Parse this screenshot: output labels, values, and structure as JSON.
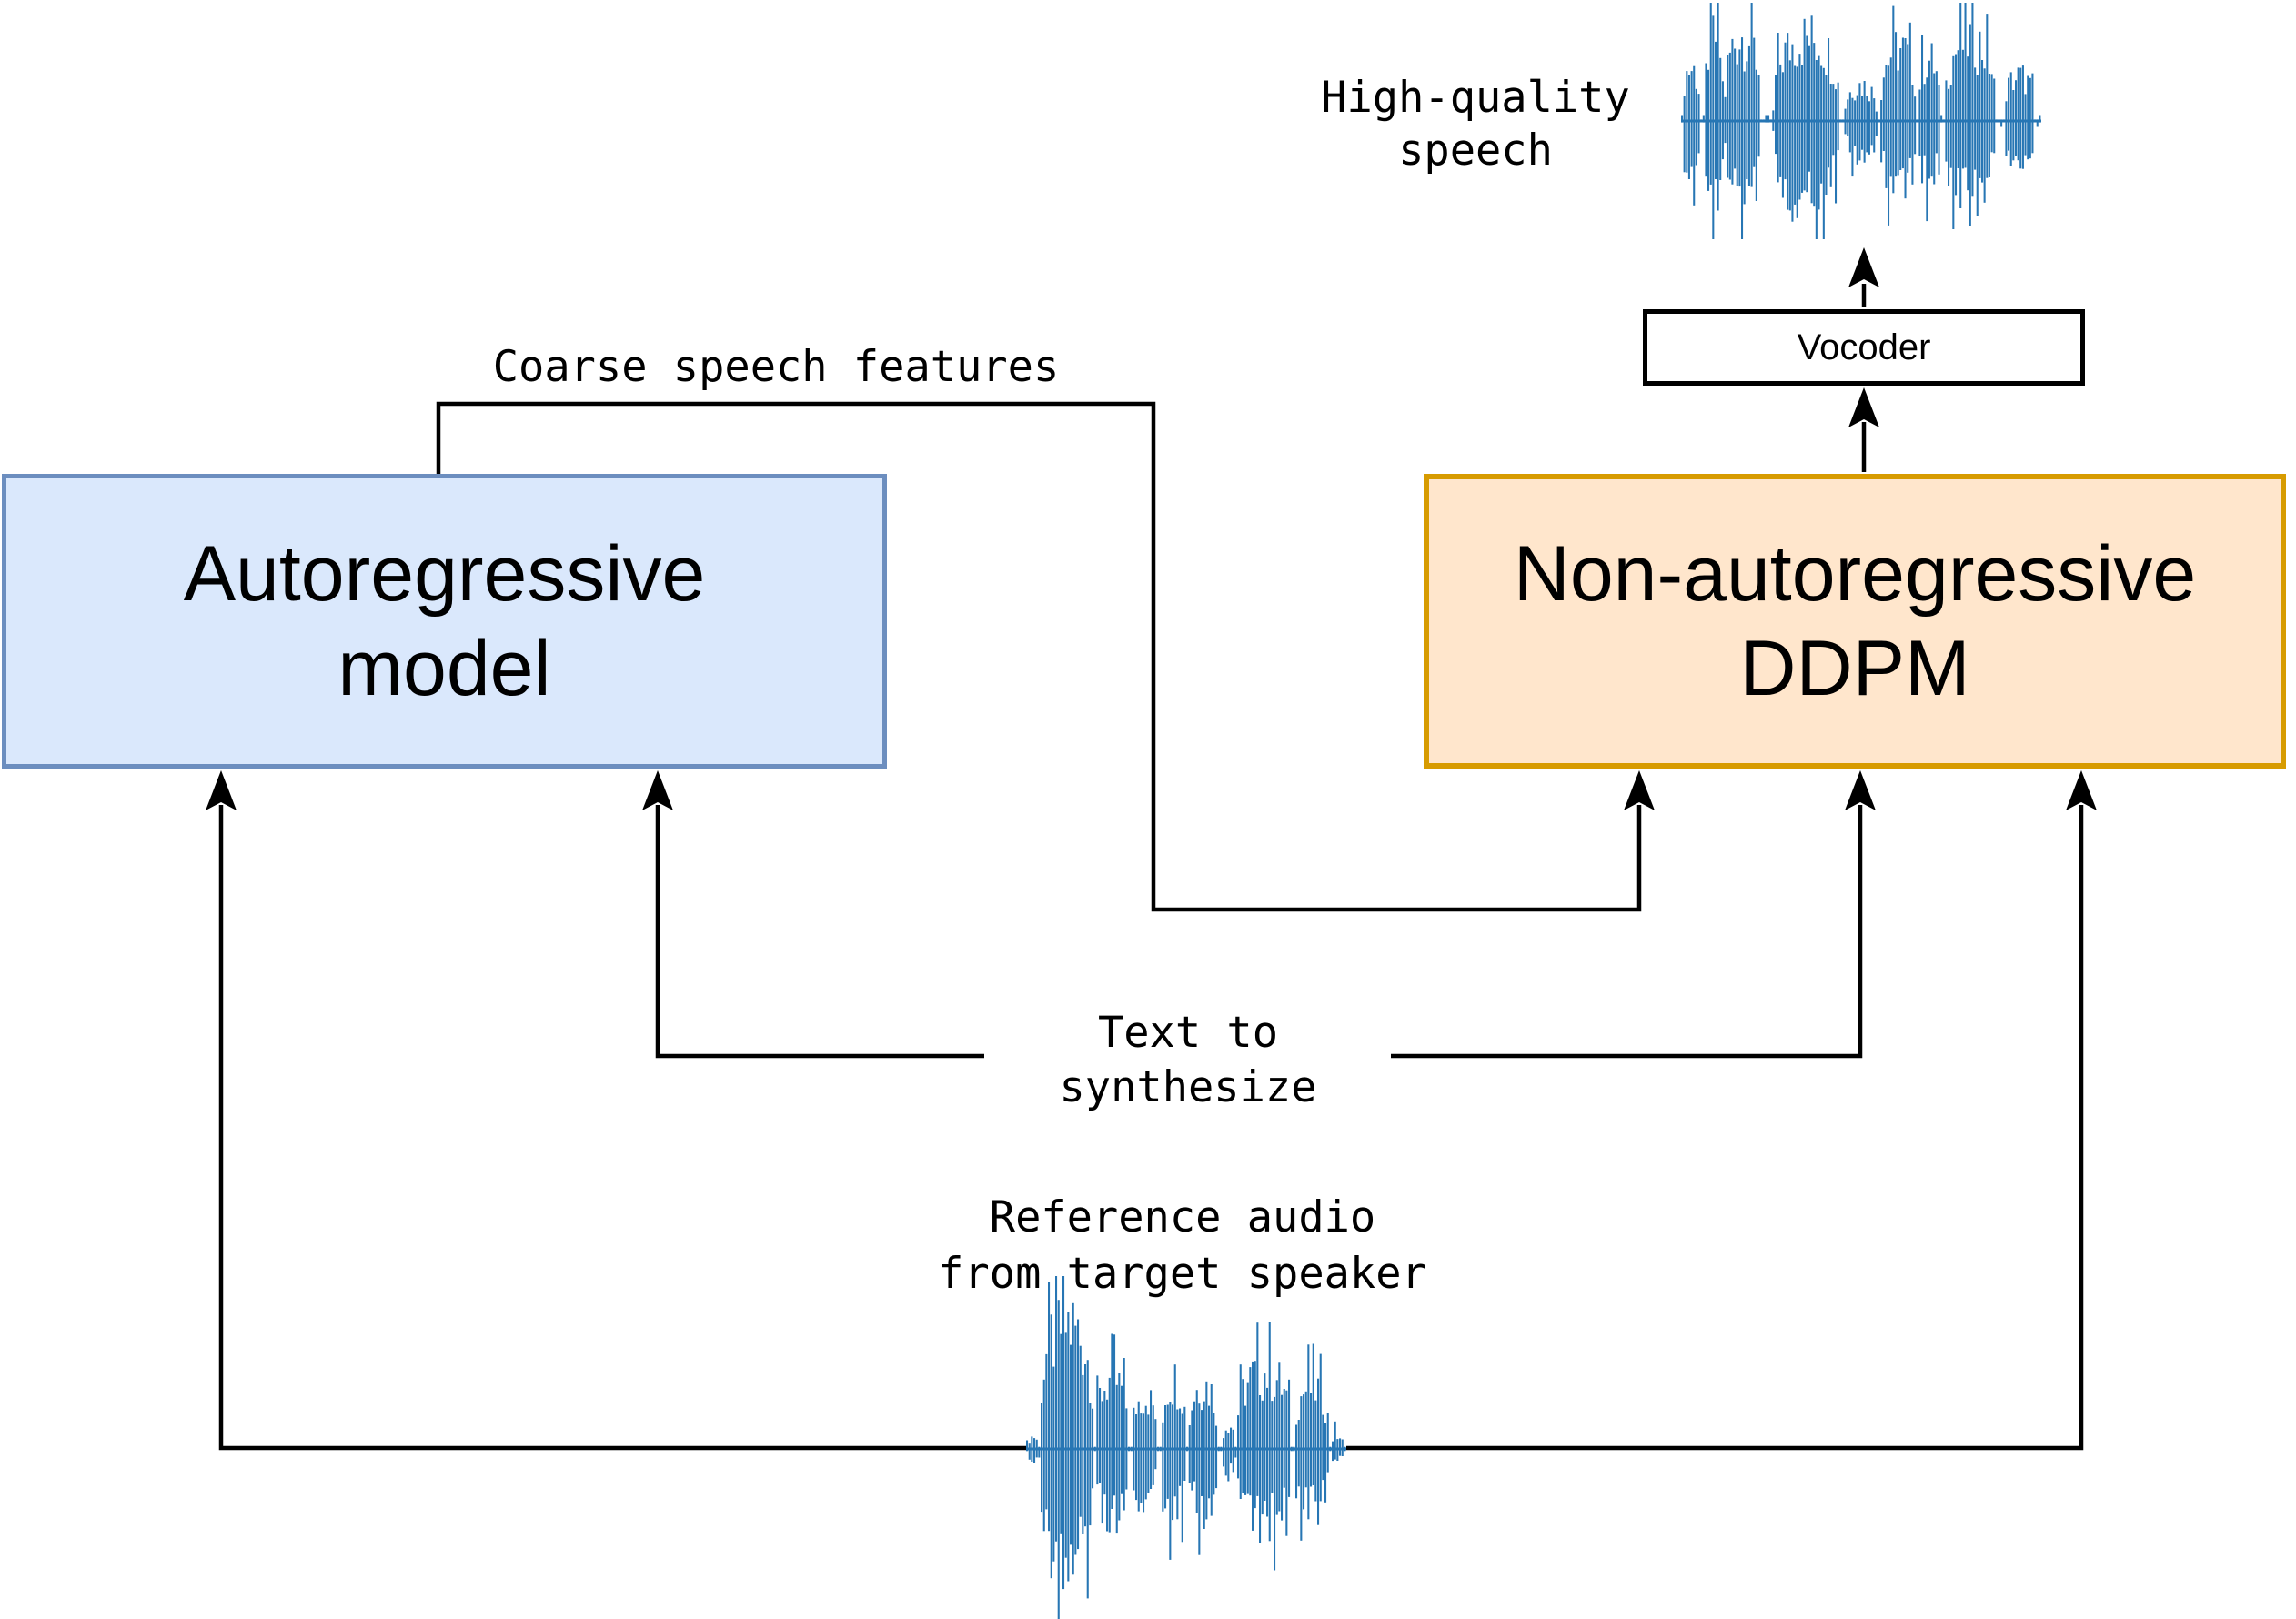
{
  "diagram": {
    "boxes": {
      "autoregressive": {
        "label_line1": "Autoregressive",
        "label_line2": "model",
        "fill": "#dae8fc",
        "border": "#6c8ebf"
      },
      "ddpm": {
        "label_line1": "Non-autoregressive",
        "label_line2": "DDPM",
        "fill": "#ffe6cc",
        "border": "#d79b00"
      },
      "vocoder": {
        "label": "Vocoder",
        "fill": "#ffffff",
        "border": "#000000"
      }
    },
    "labels": {
      "coarse_features": "Coarse speech features",
      "high_quality_line1": "High-quality",
      "high_quality_line2": "speech",
      "text_to_line1": "Text to",
      "text_to_line2": "synthesize",
      "reference_line1": "Reference audio",
      "reference_line2": "from target speaker"
    },
    "connector_color": "#000000",
    "waveform_color": "#2776b4",
    "waveforms": {
      "output_speech": {
        "description": "high-quality speech waveform",
        "bursts": [
          [
            0.0,
            0.05,
            0.62
          ],
          [
            0.065,
            0.115,
            1.0
          ],
          [
            0.12,
            0.22,
            1.0
          ],
          [
            0.255,
            0.44,
            0.97
          ],
          [
            0.455,
            0.545,
            0.42
          ],
          [
            0.555,
            0.655,
            0.85
          ],
          [
            0.66,
            0.72,
            0.72
          ],
          [
            0.735,
            0.875,
            0.95
          ],
          [
            0.9,
            0.985,
            0.52
          ]
        ]
      },
      "reference_audio": {
        "description": "reference audio waveform from target speaker",
        "bursts": [
          [
            0.005,
            0.035,
            0.1
          ],
          [
            0.04,
            0.21,
            1.0
          ],
          [
            0.215,
            0.32,
            0.55
          ],
          [
            0.33,
            0.41,
            0.42
          ],
          [
            0.425,
            0.5,
            0.55
          ],
          [
            0.51,
            0.6,
            0.52
          ],
          [
            0.615,
            0.655,
            0.2
          ],
          [
            0.66,
            0.83,
            0.62
          ],
          [
            0.84,
            0.95,
            0.5
          ],
          [
            0.955,
            0.995,
            0.1
          ]
        ]
      }
    }
  }
}
